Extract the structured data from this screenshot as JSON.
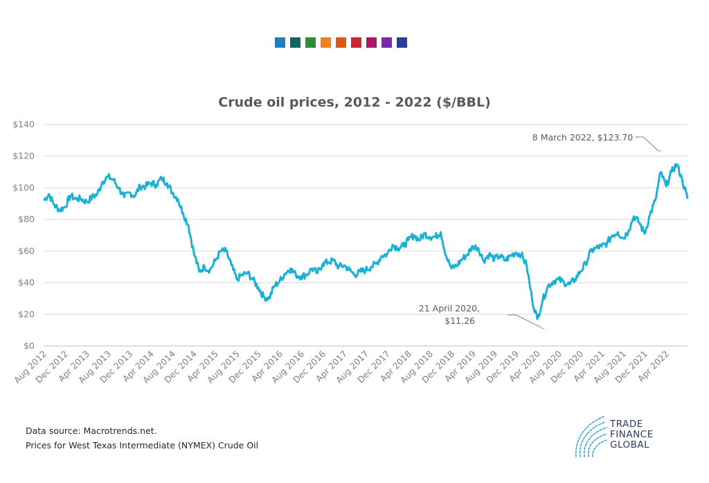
{
  "swatch_colors": [
    "#1f7fc0",
    "#11675f",
    "#2e8b3a",
    "#f0821e",
    "#d85b1a",
    "#c52a33",
    "#a8195f",
    "#7a2aa5",
    "#2b3e96"
  ],
  "chart_data": {
    "type": "line",
    "title": "Crude oil prices, 2012 - 2022 ($/BBL)",
    "xlabel": "",
    "ylabel": "",
    "ylim": [
      0,
      140
    ],
    "yticks": [
      0,
      20,
      40,
      60,
      80,
      100,
      120,
      140
    ],
    "ytick_labels": [
      "$0",
      "$20",
      "$40",
      "$60",
      "$80",
      "$100",
      "$120",
      "$140"
    ],
    "xlim": [
      "2012-08",
      "2022-08"
    ],
    "xtick_labels": [
      "Aug 2012",
      "Dec 2012",
      "Apr 2013",
      "Aug 2013",
      "Dec 2013",
      "Apr 2014",
      "Aug 2014",
      "Dec 2014",
      "Apr 2015",
      "Aug 2015",
      "Dec 2015",
      "Apr 2016",
      "Aug 2016",
      "Dec 2016",
      "Apr 2017",
      "Aug 2017",
      "Dec 2017",
      "Apr 2018",
      "Aug 2018",
      "Dec 2018",
      "Apr 2019",
      "Aug 2019",
      "Dec 2019",
      "Apr 2020",
      "Aug 2020",
      "Dec 2020",
      "Apr 2021",
      "Aug 2021",
      "Dec 2021",
      "Apr 2022"
    ],
    "grid": true,
    "legend": "none",
    "line_color": "#1ab1d6",
    "x": [
      "2012-08",
      "2012-09",
      "2012-10",
      "2012-11",
      "2012-12",
      "2013-01",
      "2013-02",
      "2013-03",
      "2013-04",
      "2013-05",
      "2013-06",
      "2013-07",
      "2013-08",
      "2013-09",
      "2013-10",
      "2013-11",
      "2013-12",
      "2014-01",
      "2014-02",
      "2014-03",
      "2014-04",
      "2014-05",
      "2014-06",
      "2014-07",
      "2014-08",
      "2014-09",
      "2014-10",
      "2014-11",
      "2014-12",
      "2015-01",
      "2015-02",
      "2015-03",
      "2015-04",
      "2015-05",
      "2015-06",
      "2015-07",
      "2015-08",
      "2015-09",
      "2015-10",
      "2015-11",
      "2015-12",
      "2016-01",
      "2016-02",
      "2016-03",
      "2016-04",
      "2016-05",
      "2016-06",
      "2016-07",
      "2016-08",
      "2016-09",
      "2016-10",
      "2016-11",
      "2016-12",
      "2017-01",
      "2017-02",
      "2017-03",
      "2017-04",
      "2017-05",
      "2017-06",
      "2017-07",
      "2017-08",
      "2017-09",
      "2017-10",
      "2017-11",
      "2017-12",
      "2018-01",
      "2018-02",
      "2018-03",
      "2018-04",
      "2018-05",
      "2018-06",
      "2018-07",
      "2018-08",
      "2018-09",
      "2018-10",
      "2018-11",
      "2018-12",
      "2019-01",
      "2019-02",
      "2019-03",
      "2019-04",
      "2019-05",
      "2019-06",
      "2019-07",
      "2019-08",
      "2019-09",
      "2019-10",
      "2019-11",
      "2019-12",
      "2020-01",
      "2020-02",
      "2020-03",
      "2020-04",
      "2020-05",
      "2020-06",
      "2020-07",
      "2020-08",
      "2020-09",
      "2020-10",
      "2020-11",
      "2020-12",
      "2021-01",
      "2021-02",
      "2021-03",
      "2021-04",
      "2021-05",
      "2021-06",
      "2021-07",
      "2021-08",
      "2021-09",
      "2021-10",
      "2021-11",
      "2021-12",
      "2022-01",
      "2022-02",
      "2022-03",
      "2022-04",
      "2022-05",
      "2022-06",
      "2022-07",
      "2022-08"
    ],
    "values": [
      92,
      96,
      89,
      86,
      88,
      95,
      93,
      93,
      91,
      94,
      96,
      104,
      107,
      105,
      100,
      94,
      97,
      95,
      101,
      101,
      103,
      102,
      106,
      103,
      97,
      93,
      84,
      76,
      59,
      47,
      50,
      48,
      54,
      60,
      60,
      51,
      42,
      45,
      46,
      42,
      37,
      31,
      30,
      38,
      41,
      46,
      49,
      45,
      44,
      45,
      49,
      46,
      52,
      53,
      54,
      50,
      51,
      48,
      45,
      47,
      48,
      50,
      52,
      57,
      58,
      64,
      62,
      63,
      67,
      70,
      67,
      71,
      69,
      69,
      72,
      57,
      49,
      51,
      55,
      58,
      63,
      62,
      54,
      58,
      55,
      57,
      54,
      57,
      59,
      58,
      51,
      30,
      17,
      29,
      38,
      41,
      42,
      40,
      39,
      42,
      47,
      52,
      60,
      62,
      63,
      65,
      70,
      72,
      68,
      73,
      82,
      78,
      71,
      83,
      92,
      110,
      101,
      110,
      115,
      105,
      93
    ],
    "annotations": [
      {
        "text_lines": [
          "8 March 2022, $123.70"
        ],
        "x": "2022-03",
        "y": 123.7
      },
      {
        "text_lines": [
          "21 April 2020,",
          "$11.26"
        ],
        "x": "2020-04",
        "y": 11.26
      }
    ]
  },
  "footer": {
    "source_line1": "Data source: Macrotrends.net.",
    "source_line2": "Prices for West Texas Intermediate (NYMEX) Crude Oil"
  },
  "logo": {
    "line1": "TRADE",
    "line2": "FINANCE",
    "line3": "GLOBAL",
    "color": "#2b3a67",
    "accent": "#3aa8c8"
  }
}
